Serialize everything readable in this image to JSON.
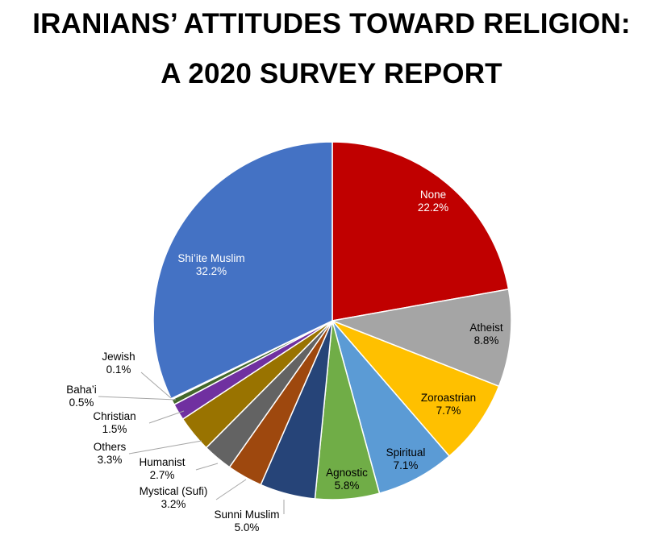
{
  "title_line1": "IRANIANS’ ATTITUDES TOWARD RELIGION:",
  "title_line2": "A 2020 SURVEY REPORT",
  "chart_data": {
    "type": "pie",
    "title": "IRANIANS’ ATTITUDES TOWARD RELIGION: A 2020 SURVEY REPORT",
    "slices": [
      {
        "label": "None",
        "value": 22.2,
        "value_label": "22.2%",
        "color": "#c00000"
      },
      {
        "label": "Atheist",
        "value": 8.8,
        "value_label": "8.8%",
        "color": "#a5a5a5"
      },
      {
        "label": "Zoroastrian",
        "value": 7.7,
        "value_label": "7.7%",
        "color": "#ffc000"
      },
      {
        "label": "Spiritual",
        "value": 7.1,
        "value_label": "7.1%",
        "color": "#5b9bd5"
      },
      {
        "label": "Agnostic",
        "value": 5.8,
        "value_label": "5.8%",
        "color": "#70ad47"
      },
      {
        "label": "Sunni Muslim",
        "value": 5.0,
        "value_label": "5.0%",
        "color": "#264478"
      },
      {
        "label": "Mystical (Sufi)",
        "value": 3.2,
        "value_label": "3.2%",
        "color": "#9e480e"
      },
      {
        "label": "Humanist",
        "value": 2.7,
        "value_label": "2.7%",
        "color": "#636363"
      },
      {
        "label": "Others",
        "value": 3.3,
        "value_label": "3.3%",
        "color": "#997300"
      },
      {
        "label": "Christian",
        "value": 1.5,
        "value_label": "1.5%",
        "color": "#7030a0"
      },
      {
        "label": "Baha’i",
        "value": 0.5,
        "value_label": "0.5%",
        "color": "#43682b"
      },
      {
        "label": "Jewish",
        "value": 0.1,
        "value_label": "0.1%",
        "color": "#1f3864"
      },
      {
        "label": "Shi’ite Muslim",
        "value": 32.2,
        "value_label": "32.2%",
        "color": "#4472c4"
      }
    ]
  }
}
